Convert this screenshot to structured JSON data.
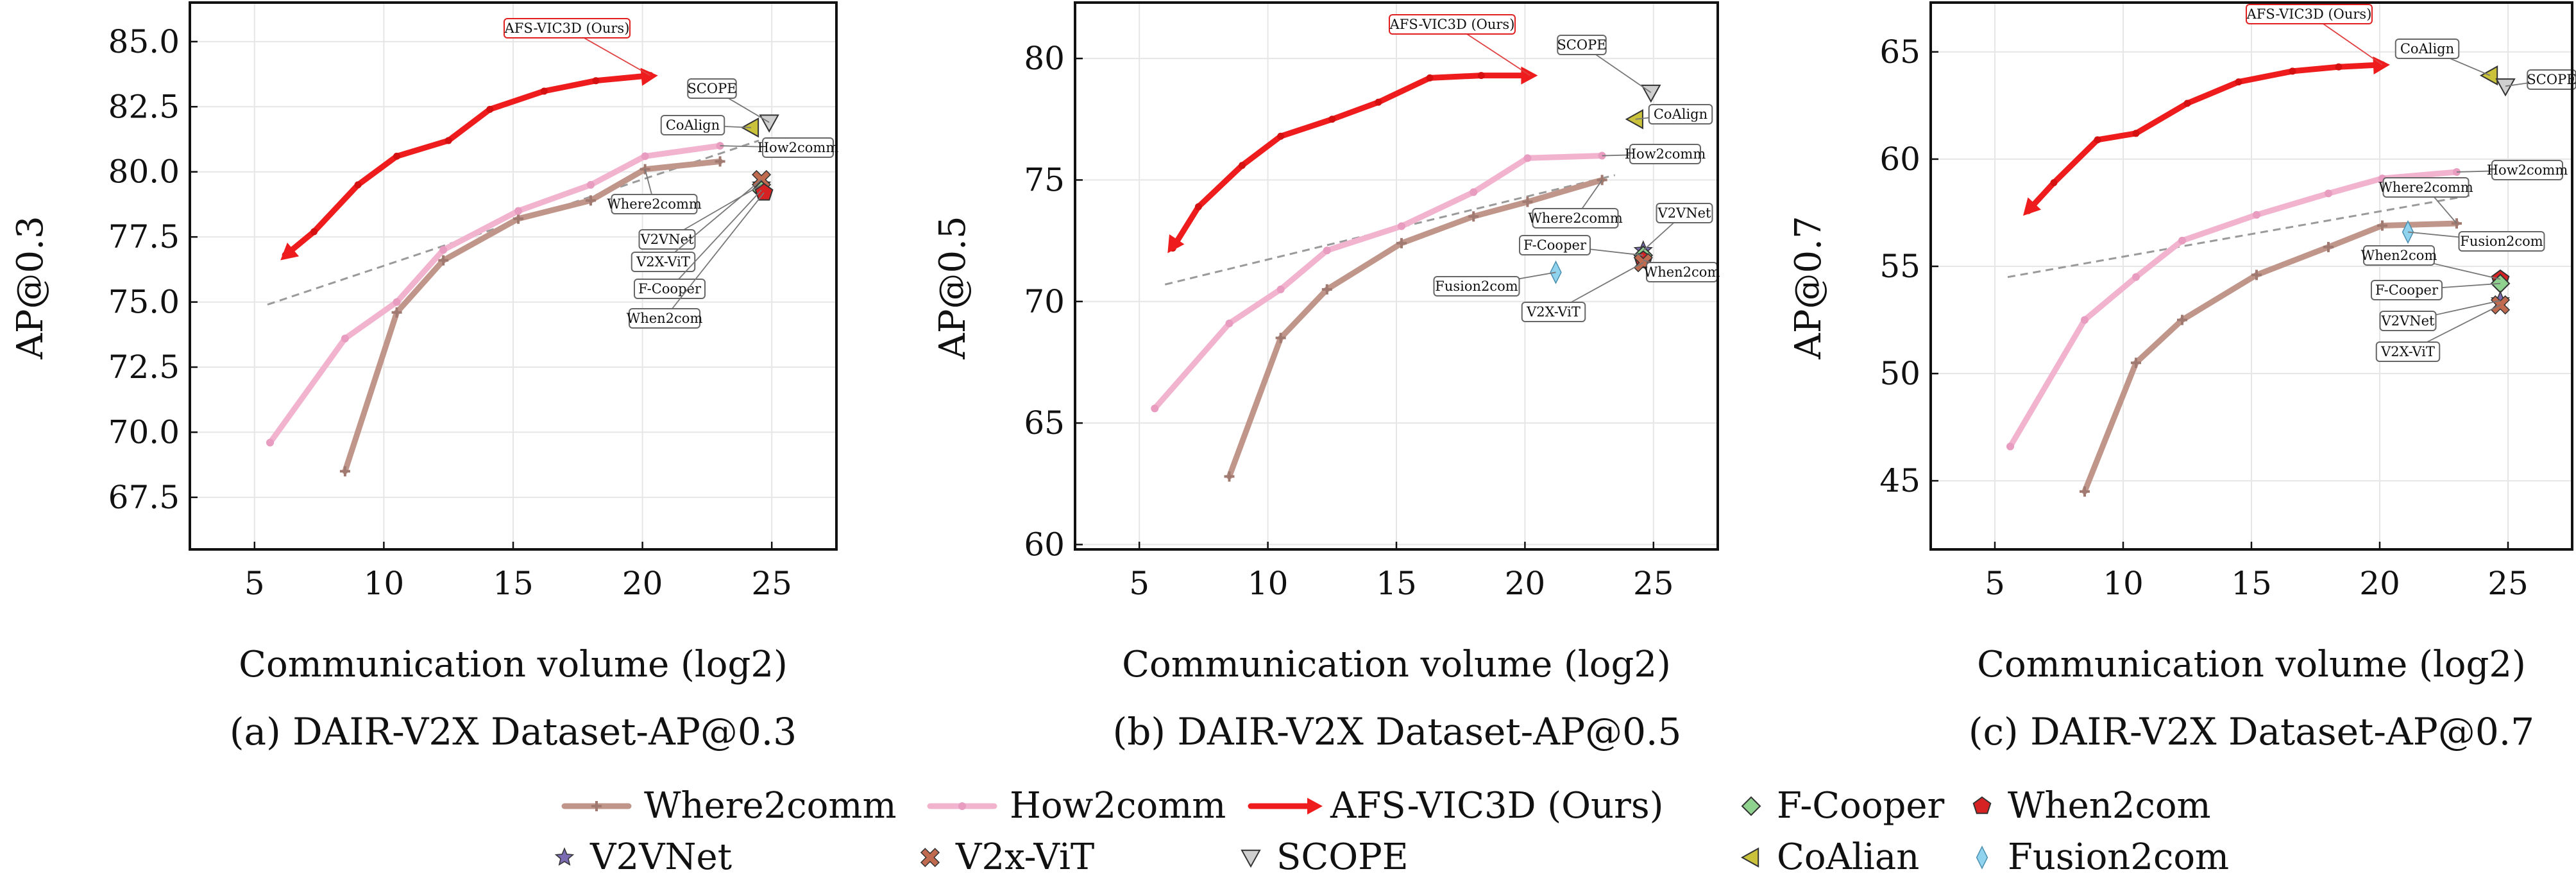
{
  "legend": {
    "entries": [
      {
        "label": "Where2comm",
        "marker": "line-plus",
        "color": "#c0958a"
      },
      {
        "label": "How2comm",
        "marker": "line-dot",
        "color": "#f2b3cf"
      },
      {
        "label": "AFS-VIC3D (Ours)",
        "marker": "line-arrow",
        "color": "#ee1c1c"
      },
      {
        "label": "F-Cooper",
        "marker": "diamond",
        "color": "#8fd18f"
      },
      {
        "label": "When2com",
        "marker": "pentagon",
        "color": "#d62222"
      },
      {
        "label": "V2VNet",
        "marker": "star",
        "color": "#7a6bb3"
      },
      {
        "label": "V2x-ViT",
        "marker": "x",
        "color": "#c06a50"
      },
      {
        "label": "SCOPE",
        "marker": "triangle-down",
        "color": "#cfcfcf"
      },
      {
        "label": "CoAlian",
        "marker": "triangle-left",
        "color": "#c9c23a"
      },
      {
        "label": "Fusion2com",
        "marker": "diamond-thin",
        "color": "#8fd3ee"
      }
    ]
  },
  "colors": {
    "where2comm": "#c0958a",
    "how2comm": "#f2b3cf",
    "afs": "#ee1c1c",
    "trend": "#9a9a9a",
    "grid": "#e6e6e6"
  },
  "chart_data": [
    {
      "type": "line",
      "caption": "(a) DAIR-V2X Dataset-AP@0.3",
      "xlabel": "Communication volume (log2)",
      "ylabel": "AP@0.3",
      "xlim": [
        2.5,
        27.5
      ],
      "ylim": [
        65.5,
        86.5
      ],
      "xticks": [
        5,
        10,
        15,
        20,
        25
      ],
      "yticks": [
        67.5,
        70.0,
        72.5,
        75.0,
        77.5,
        80.0,
        82.5,
        85.0
      ],
      "ytick_labels": [
        "67.5",
        "70.0",
        "72.5",
        "75.0",
        "77.5",
        "80.0",
        "82.5",
        "85.0"
      ],
      "grid": true,
      "series": [
        {
          "name": "Where2comm",
          "x": [
            8.5,
            10.5,
            12.3,
            15.2,
            18.0,
            20.1,
            23.0
          ],
          "y": [
            68.5,
            74.6,
            76.6,
            78.2,
            78.9,
            80.1,
            80.4
          ]
        },
        {
          "name": "How2comm",
          "x": [
            5.6,
            8.5,
            10.5,
            12.3,
            15.2,
            18.0,
            20.1,
            23.0
          ],
          "y": [
            69.6,
            73.6,
            75.0,
            77.0,
            78.5,
            79.5,
            80.6,
            81.0
          ]
        },
        {
          "name": "AFS-VIC3D (Ours)",
          "x": [
            6.2,
            7.3,
            9.0,
            10.5,
            12.5,
            14.1,
            16.2,
            18.2,
            20.3
          ],
          "y": [
            76.8,
            77.7,
            79.5,
            80.6,
            81.2,
            82.4,
            83.1,
            83.5,
            83.7
          ]
        }
      ],
      "points": [
        {
          "name": "SCOPE",
          "x": 24.9,
          "y": 81.9
        },
        {
          "name": "CoAlign",
          "x": 24.2,
          "y": 81.7
        },
        {
          "name": "V2VNet",
          "x": 24.6,
          "y": 79.5
        },
        {
          "name": "V2X-ViT",
          "x": 24.6,
          "y": 79.7
        },
        {
          "name": "F-Cooper",
          "x": 24.6,
          "y": 79.3
        },
        {
          "name": "When2com",
          "x": 24.7,
          "y": 79.2
        }
      ],
      "trend": {
        "x": [
          5.5,
          24.5
        ],
        "y": [
          74.9,
          81.2
        ]
      },
      "callouts": [
        {
          "text": "AFS-VIC3D (Ours)",
          "highlight": true
        },
        {
          "text": "SCOPE"
        },
        {
          "text": "CoAlign"
        },
        {
          "text": "How2comm"
        },
        {
          "text": "Where2comm"
        },
        {
          "text": "V2VNet"
        },
        {
          "text": "V2X-ViT"
        },
        {
          "text": "F-Cooper"
        },
        {
          "text": "When2com"
        }
      ]
    },
    {
      "type": "line",
      "caption": "(b) DAIR-V2X Dataset-AP@0.5",
      "xlabel": "Communication volume (log2)",
      "ylabel": "AP@0.5",
      "xlim": [
        2.5,
        27.5
      ],
      "ylim": [
        59.8,
        82.3
      ],
      "xticks": [
        5,
        10,
        15,
        20,
        25
      ],
      "yticks": [
        60,
        65,
        70,
        75,
        80
      ],
      "ytick_labels": [
        "60",
        "65",
        "70",
        "75",
        "80"
      ],
      "grid": true,
      "series": [
        {
          "name": "Where2comm",
          "x": [
            8.5,
            10.5,
            12.3,
            15.2,
            18.0,
            20.1,
            23.0
          ],
          "y": [
            62.8,
            68.5,
            70.5,
            72.4,
            73.5,
            74.1,
            75.0
          ]
        },
        {
          "name": "How2comm",
          "x": [
            5.6,
            8.5,
            10.5,
            12.3,
            15.2,
            18.0,
            20.1,
            23.0
          ],
          "y": [
            65.6,
            69.1,
            70.5,
            72.1,
            73.1,
            74.5,
            75.9,
            76.0
          ]
        },
        {
          "name": "AFS-VIC3D (Ours)",
          "x": [
            6.3,
            7.3,
            9.0,
            10.5,
            12.5,
            14.3,
            16.3,
            18.3,
            20.2
          ],
          "y": [
            72.2,
            73.9,
            75.6,
            76.8,
            77.5,
            78.2,
            79.2,
            79.3,
            79.3
          ]
        }
      ],
      "points": [
        {
          "name": "SCOPE",
          "x": 24.9,
          "y": 78.6
        },
        {
          "name": "CoAlign",
          "x": 24.3,
          "y": 77.5
        },
        {
          "name": "V2VNet",
          "x": 24.6,
          "y": 72.1
        },
        {
          "name": "F-Cooper",
          "x": 24.6,
          "y": 71.9
        },
        {
          "name": "When2com",
          "x": 24.6,
          "y": 71.7
        },
        {
          "name": "V2X-ViT",
          "x": 24.6,
          "y": 71.6
        },
        {
          "name": "Fusion2com",
          "x": 21.2,
          "y": 71.2
        }
      ],
      "trend": {
        "x": [
          6.0,
          23.5
        ],
        "y": [
          70.7,
          75.2
        ]
      },
      "callouts": [
        {
          "text": "AFS-VIC3D (Ours)",
          "highlight": true
        },
        {
          "text": "SCOPE"
        },
        {
          "text": "CoAlign"
        },
        {
          "text": "How2comm"
        },
        {
          "text": "Where2comm"
        },
        {
          "text": "V2VNet"
        },
        {
          "text": "F-Cooper"
        },
        {
          "text": "When2com"
        },
        {
          "text": "Fusion2com"
        },
        {
          "text": "V2X-ViT"
        }
      ]
    },
    {
      "type": "line",
      "caption": "(c) DAIR-V2X Dataset-AP@0.7",
      "xlabel": "Communication volume (log2)",
      "ylabel": "AP@0.7",
      "xlim": [
        2.5,
        27.5
      ],
      "ylim": [
        41.8,
        67.3
      ],
      "xticks": [
        5,
        10,
        15,
        20,
        25
      ],
      "yticks": [
        45,
        50,
        55,
        60,
        65
      ],
      "ytick_labels": [
        "45",
        "50",
        "55",
        "60",
        "65"
      ],
      "grid": true,
      "series": [
        {
          "name": "Where2comm",
          "x": [
            8.5,
            10.5,
            12.3,
            15.2,
            18.0,
            20.1,
            23.0
          ],
          "y": [
            44.5,
            50.5,
            52.5,
            54.6,
            55.9,
            56.9,
            57.0
          ]
        },
        {
          "name": "How2comm",
          "x": [
            5.6,
            8.5,
            10.5,
            12.3,
            15.2,
            18.0,
            20.1,
            23.0
          ],
          "y": [
            46.6,
            52.5,
            54.5,
            56.2,
            57.4,
            58.4,
            59.1,
            59.4
          ]
        },
        {
          "name": "AFS-VIC3D (Ours)",
          "x": [
            6.3,
            7.3,
            9.0,
            10.5,
            12.5,
            14.5,
            16.6,
            18.4,
            20.1
          ],
          "y": [
            57.6,
            58.9,
            60.9,
            61.2,
            62.6,
            63.6,
            64.1,
            64.3,
            64.4
          ]
        }
      ],
      "points": [
        {
          "name": "CoAlign",
          "x": 24.3,
          "y": 63.9
        },
        {
          "name": "SCOPE",
          "x": 24.9,
          "y": 63.4
        },
        {
          "name": "Fusion2com",
          "x": 21.1,
          "y": 56.6
        },
        {
          "name": "When2com",
          "x": 24.7,
          "y": 54.4
        },
        {
          "name": "F-Cooper",
          "x": 24.7,
          "y": 54.2
        },
        {
          "name": "V2VNet",
          "x": 24.7,
          "y": 53.4
        },
        {
          "name": "V2X-ViT",
          "x": 24.7,
          "y": 53.2
        }
      ],
      "trend": {
        "x": [
          5.5,
          23.5
        ],
        "y": [
          54.5,
          58.3
        ]
      },
      "callouts": [
        {
          "text": "AFS-VIC3D (Ours)",
          "highlight": true
        },
        {
          "text": "CoAlign"
        },
        {
          "text": "SCOPE"
        },
        {
          "text": "How2comm"
        },
        {
          "text": "Where2comm"
        },
        {
          "text": "Fusion2com"
        },
        {
          "text": "When2com"
        },
        {
          "text": "F-Cooper"
        },
        {
          "text": "V2VNet"
        },
        {
          "text": "V2X-ViT"
        }
      ]
    }
  ]
}
